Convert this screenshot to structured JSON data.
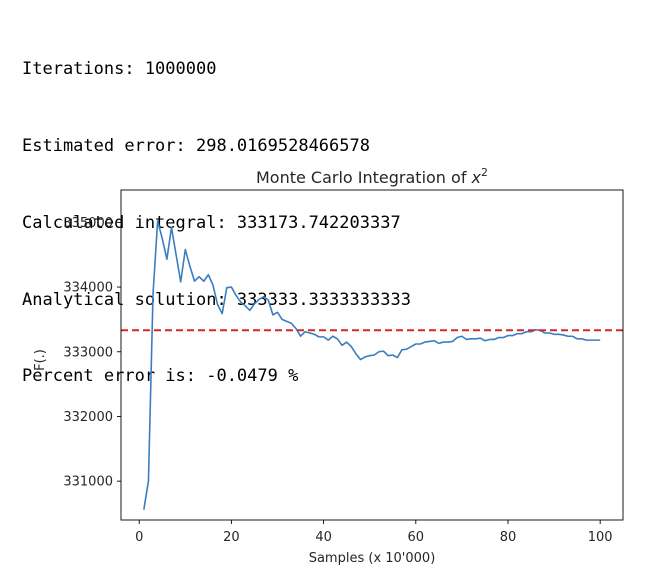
{
  "output": {
    "lines": [
      "Iterations: 1000000",
      "Estimated error: 298.0169528466578",
      "Calculated integral: 333173.742203337",
      "Analytical solution: 333333.3333333333",
      "Percent error is: -0.0479 %"
    ]
  },
  "chart_data": {
    "type": "line",
    "title": "Monte Carlo Integration of x²",
    "title_prefix": "Monte Carlo Integration of ",
    "title_var": "x",
    "title_exp": "2",
    "xlabel": "Samples (x 10'000)",
    "ylabel": "F(.)",
    "xlim": [
      -3.95,
      104.95
    ],
    "ylim": [
      330400,
      335500
    ],
    "xticks": [
      0,
      20,
      40,
      60,
      80,
      100
    ],
    "yticks": [
      331000,
      332000,
      333000,
      334000,
      335000
    ],
    "grid": false,
    "series": [
      {
        "color": "#3a7ec0",
        "x": [
          1,
          2,
          3,
          4,
          5,
          6,
          7,
          8,
          9,
          10,
          11,
          12,
          13,
          14,
          15,
          16,
          17,
          18,
          19,
          20,
          21,
          22,
          23,
          24,
          25,
          26,
          27,
          28,
          29,
          30,
          31,
          32,
          33,
          34,
          35,
          36,
          37,
          38,
          39,
          40,
          41,
          42,
          43,
          44,
          45,
          46,
          47,
          48,
          49,
          50,
          51,
          52,
          53,
          54,
          55,
          56,
          57,
          58,
          59,
          60,
          61,
          62,
          63,
          64,
          65,
          66,
          67,
          68,
          69,
          70,
          71,
          72,
          73,
          74,
          75,
          76,
          77,
          78,
          79,
          80,
          81,
          82,
          83,
          84,
          85,
          86,
          87,
          88,
          89,
          90,
          91,
          92,
          93,
          94,
          95,
          96,
          97,
          98,
          99,
          100
        ],
        "values": [
          330560,
          331000,
          333900,
          335020,
          334750,
          334430,
          334920,
          334500,
          334080,
          334580,
          334320,
          334090,
          334160,
          334090,
          334190,
          334030,
          333730,
          333590,
          333990,
          334000,
          333870,
          333770,
          333710,
          333640,
          333740,
          333810,
          333850,
          333800,
          333570,
          333610,
          333500,
          333470,
          333440,
          333360,
          333240,
          333310,
          333290,
          333270,
          333230,
          333230,
          333180,
          333240,
          333200,
          333100,
          333150,
          333080,
          332970,
          332880,
          332920,
          332940,
          332950,
          333000,
          333010,
          332940,
          332950,
          332910,
          333030,
          333040,
          333080,
          333120,
          333120,
          333150,
          333160,
          333170,
          333130,
          333150,
          333150,
          333160,
          333220,
          333240,
          333190,
          333200,
          333200,
          333210,
          333170,
          333190,
          333190,
          333220,
          333220,
          333250,
          333250,
          333280,
          333280,
          333310,
          333310,
          333340,
          333330,
          333290,
          333290,
          333270,
          333270,
          333260,
          333240,
          333240,
          333200,
          333200,
          333180,
          333180,
          333180,
          333180
        ]
      }
    ],
    "reference_line": {
      "y": 333333.3333333333,
      "style": "dashed",
      "color": "#d62728"
    }
  }
}
